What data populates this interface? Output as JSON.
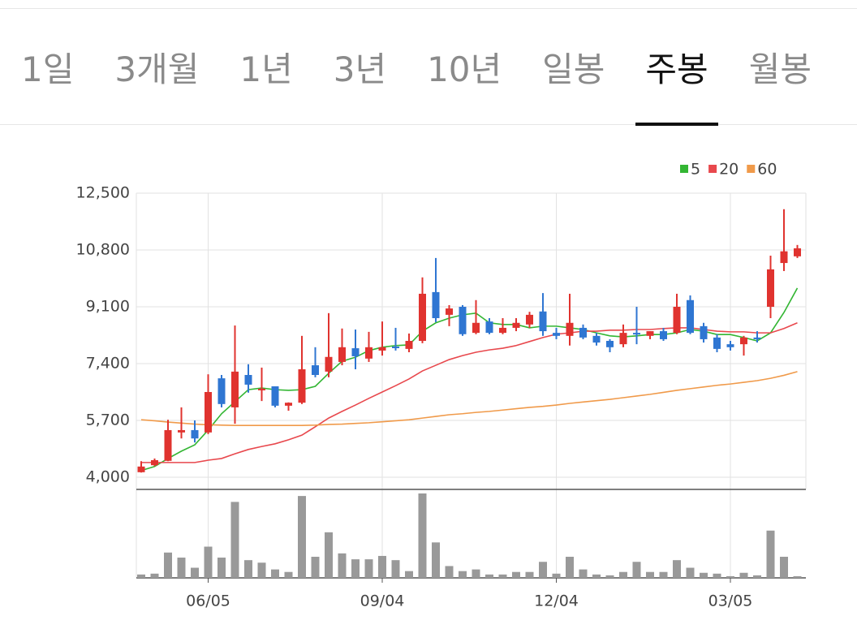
{
  "tabs": [
    {
      "label": "1일",
      "selected": false
    },
    {
      "label": "3개월",
      "selected": false
    },
    {
      "label": "1년",
      "selected": false
    },
    {
      "label": "3년",
      "selected": false
    },
    {
      "label": "10년",
      "selected": false
    },
    {
      "label": "일봉",
      "selected": false
    },
    {
      "label": "주봉",
      "selected": true
    },
    {
      "label": "월봉",
      "selected": false
    }
  ],
  "chart_data": {
    "type": "candlestick",
    "categories": [
      null,
      null,
      null,
      null,
      null,
      "06/05",
      null,
      null,
      null,
      null,
      null,
      null,
      null,
      null,
      null,
      null,
      null,
      null,
      "09/04",
      null,
      null,
      null,
      null,
      null,
      null,
      null,
      null,
      null,
      null,
      null,
      null,
      "12/04",
      null,
      null,
      null,
      null,
      null,
      null,
      null,
      null,
      null,
      null,
      null,
      null,
      "03/05",
      null,
      null,
      null,
      null,
      null
    ],
    "ylim": [
      4000,
      12500
    ],
    "yticks": [
      {
        "value": 4000,
        "label": "4,000"
      },
      {
        "value": 5700,
        "label": "5,700"
      },
      {
        "value": 7400,
        "label": "7,400"
      },
      {
        "value": 9100,
        "label": "9,100"
      },
      {
        "value": 10800,
        "label": "10,800"
      },
      {
        "value": 12500,
        "label": "12,500"
      }
    ],
    "grid": true,
    "up_color": "#e0332f",
    "down_color": "#2f76d2",
    "ohlc": {
      "open": [
        4150,
        4360,
        4490,
        5340,
        5410,
        5340,
        6960,
        6090,
        7060,
        6600,
        6720,
        6140,
        6230,
        7350,
        7160,
        7450,
        7860,
        7550,
        7790,
        7910,
        7840,
        8080,
        9540,
        8860,
        9100,
        8320,
        8660,
        8320,
        8470,
        8570,
        8960,
        8320,
        8230,
        8470,
        8230,
        8080,
        7980,
        8320,
        8230,
        8370,
        8320,
        9300,
        8520,
        8180,
        7980,
        7980,
        8180,
        9100,
        10410,
        10610
      ],
      "high": [
        4480,
        4560,
        5720,
        6090,
        5700,
        7080,
        7060,
        8540,
        7380,
        7280,
        6720,
        6240,
        8230,
        7890,
        8910,
        8450,
        8420,
        8350,
        8660,
        8470,
        8300,
        9980,
        10560,
        9150,
        9150,
        9300,
        8760,
        8760,
        8760,
        8950,
        9510,
        8470,
        9490,
        8570,
        8320,
        8130,
        8570,
        9100,
        8370,
        8470,
        9490,
        9440,
        8620,
        8280,
        8080,
        8230,
        8370,
        10630,
        12020,
        10950
      ],
      "low": [
        4140,
        4330,
        4480,
        5160,
        5040,
        5290,
        6090,
        5600,
        6530,
        6280,
        6090,
        5990,
        6190,
        6990,
        6990,
        7350,
        7230,
        7450,
        7640,
        7790,
        7740,
        8010,
        8640,
        8520,
        8230,
        8280,
        8280,
        8280,
        8370,
        8470,
        8230,
        8130,
        7940,
        8130,
        7940,
        7740,
        7890,
        7980,
        8130,
        8080,
        8280,
        8280,
        8030,
        7740,
        7790,
        7640,
        8030,
        8760,
        10170,
        10560
      ],
      "close": [
        4320,
        4510,
        5410,
        5410,
        5160,
        6550,
        6190,
        7160,
        6770,
        6650,
        6140,
        6230,
        7230,
        7060,
        7600,
        7890,
        7620,
        7890,
        7890,
        7870,
        8080,
        9490,
        8760,
        9050,
        8280,
        8620,
        8320,
        8470,
        8620,
        8860,
        8370,
        8230,
        8620,
        8180,
        8030,
        7890,
        8320,
        8280,
        8370,
        8130,
        9100,
        8320,
        8130,
        7840,
        7890,
        8180,
        8130,
        10220,
        10760,
        10850
      ]
    },
    "series": [
      {
        "name": "5",
        "color": "#33b633",
        "values": [
          4200,
          4320,
          4560,
          4780,
          4970,
          5410,
          5900,
          6260,
          6620,
          6670,
          6620,
          6600,
          6620,
          6720,
          7110,
          7470,
          7590,
          7790,
          7890,
          7940,
          7960,
          8370,
          8620,
          8760,
          8860,
          8910,
          8620,
          8570,
          8570,
          8470,
          8520,
          8520,
          8470,
          8420,
          8320,
          8230,
          8200,
          8230,
          8270,
          8270,
          8320,
          8420,
          8370,
          8270,
          8270,
          8180,
          8080,
          8320,
          8930,
          9660
        ]
      },
      {
        "name": "20",
        "color": "#e8484d",
        "values": [
          4440,
          4440,
          4440,
          4440,
          4440,
          4510,
          4560,
          4700,
          4830,
          4920,
          5000,
          5120,
          5260,
          5510,
          5770,
          5970,
          6160,
          6360,
          6550,
          6740,
          6940,
          7180,
          7350,
          7520,
          7640,
          7740,
          7810,
          7860,
          7940,
          8060,
          8180,
          8280,
          8320,
          8370,
          8370,
          8400,
          8400,
          8420,
          8420,
          8450,
          8470,
          8470,
          8420,
          8370,
          8350,
          8350,
          8320,
          8320,
          8450,
          8620
        ]
      },
      {
        "name": "60",
        "color": "#f09a4a",
        "values": [
          5720,
          5690,
          5650,
          5620,
          5590,
          5570,
          5560,
          5550,
          5550,
          5550,
          5550,
          5550,
          5550,
          5560,
          5580,
          5590,
          5610,
          5630,
          5660,
          5690,
          5720,
          5770,
          5820,
          5870,
          5900,
          5940,
          5970,
          6010,
          6050,
          6090,
          6120,
          6160,
          6210,
          6250,
          6290,
          6330,
          6380,
          6430,
          6480,
          6540,
          6600,
          6650,
          6700,
          6750,
          6790,
          6840,
          6890,
          6960,
          7050,
          7160
        ]
      }
    ],
    "volume": {
      "color": "#999999",
      "values": [
        4,
        5,
        30,
        24,
        12,
        37,
        24,
        90,
        21,
        18,
        10,
        7,
        97,
        25,
        54,
        29,
        22,
        22,
        26,
        21,
        8,
        100,
        42,
        14,
        8,
        10,
        4,
        4,
        7,
        7,
        19,
        5,
        25,
        10,
        4,
        3,
        7,
        19,
        7,
        7,
        21,
        12,
        6,
        5,
        2,
        6,
        3,
        56,
        25,
        2
      ]
    }
  }
}
